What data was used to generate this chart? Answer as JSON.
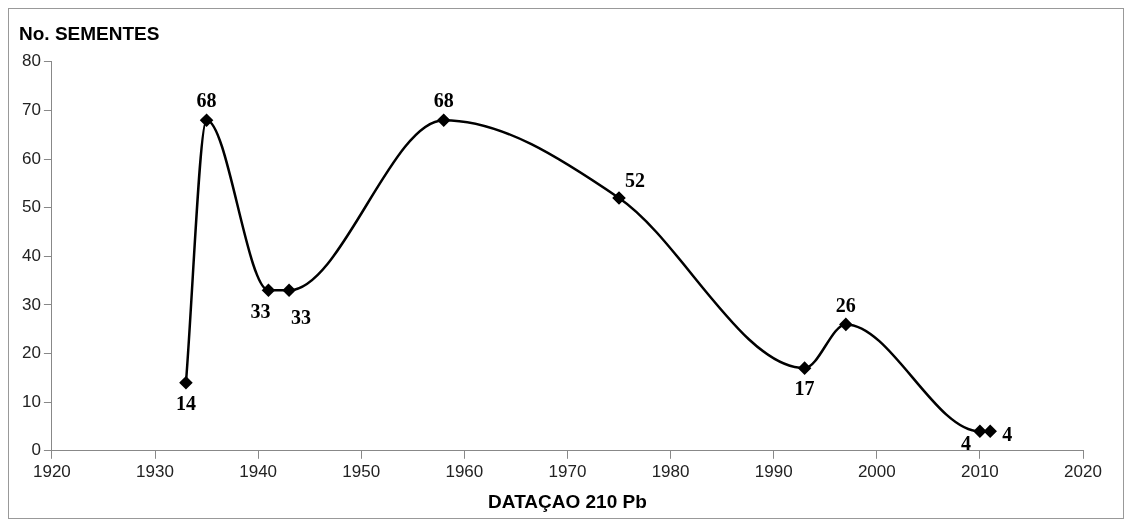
{
  "chart_data": {
    "type": "line",
    "ylabel": "No. SEMENTES",
    "xlabel": "DATAÇAO 210 Pb",
    "x": [
      1933,
      1935,
      1941,
      1943,
      1958,
      1975,
      1993,
      1997,
      2010,
      2011
    ],
    "series": [
      {
        "color": "#000000",
        "values": [
          14,
          68,
          33,
          33,
          68,
          52,
          17,
          26,
          4,
          4
        ]
      }
    ],
    "xlim": [
      1920,
      2020
    ],
    "xticks": [
      1920,
      1930,
      1940,
      1950,
      1960,
      1970,
      1980,
      1990,
      2000,
      2010,
      2020
    ],
    "ylim": [
      0,
      80
    ],
    "yticks": [
      0,
      10,
      20,
      30,
      40,
      50,
      60,
      70,
      80
    ],
    "marker": "diamond",
    "data_labels": true,
    "grid": false,
    "legend": false
  }
}
